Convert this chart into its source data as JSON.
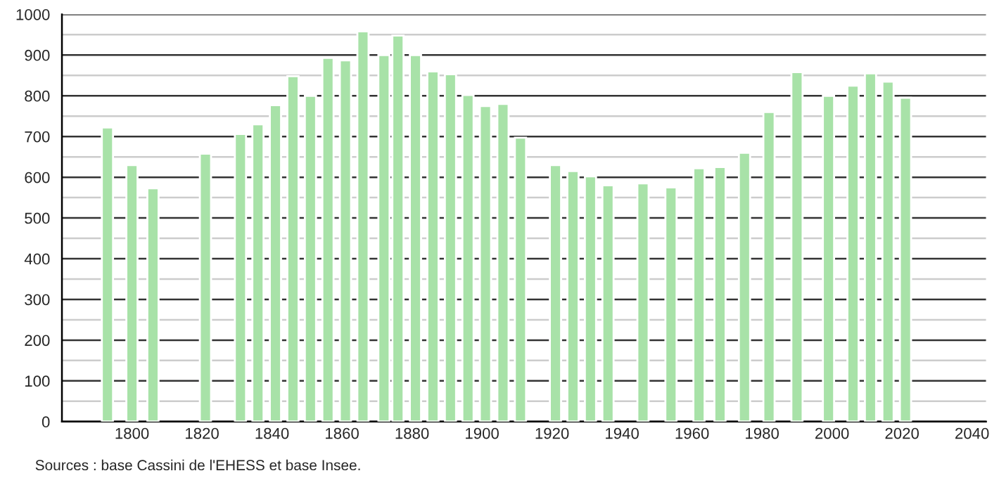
{
  "chart_data": {
    "type": "bar",
    "color": "#a8e2a8",
    "x": [
      1793,
      1800,
      1806,
      1821,
      1831,
      1836,
      1841,
      1846,
      1851,
      1856,
      1861,
      1866,
      1872,
      1876,
      1881,
      1886,
      1891,
      1896,
      1901,
      1906,
      1911,
      1921,
      1926,
      1931,
      1936,
      1946,
      1954,
      1962,
      1968,
      1975,
      1982,
      1990,
      1999,
      2006,
      2011,
      2016,
      2021
    ],
    "values": [
      722,
      630,
      573,
      658,
      706,
      730,
      777,
      848,
      800,
      893,
      887,
      958,
      900,
      948,
      900,
      860,
      853,
      802,
      775,
      780,
      697,
      630,
      615,
      602,
      580,
      585,
      575,
      622,
      625,
      660,
      760,
      858,
      800,
      825,
      855,
      835,
      795
    ],
    "xlim": [
      1780,
      2044
    ],
    "xticks": [
      1800,
      1820,
      1840,
      1860,
      1880,
      1900,
      1920,
      1940,
      1960,
      1980,
      2000,
      2020,
      2040
    ],
    "ylim": [
      0,
      1000
    ],
    "yticks": [
      0,
      {
        "value": 50,
        "label": null
      },
      100,
      {
        "value": 150,
        "label": null
      },
      200,
      {
        "value": 250,
        "label": null
      },
      300,
      {
        "value": 350,
        "label": null
      },
      400,
      {
        "value": 450,
        "label": null
      },
      500,
      {
        "value": 550,
        "label": null
      },
      600,
      {
        "value": 650,
        "label": null
      },
      700,
      {
        "value": 750,
        "label": null
      },
      800,
      {
        "value": 850,
        "label": null
      },
      900,
      {
        "value": 950,
        "label": null
      },
      1000
    ],
    "grid": "y",
    "annotations": [
      "Sources : base Cassini de l'EHESS et base Insee."
    ]
  }
}
